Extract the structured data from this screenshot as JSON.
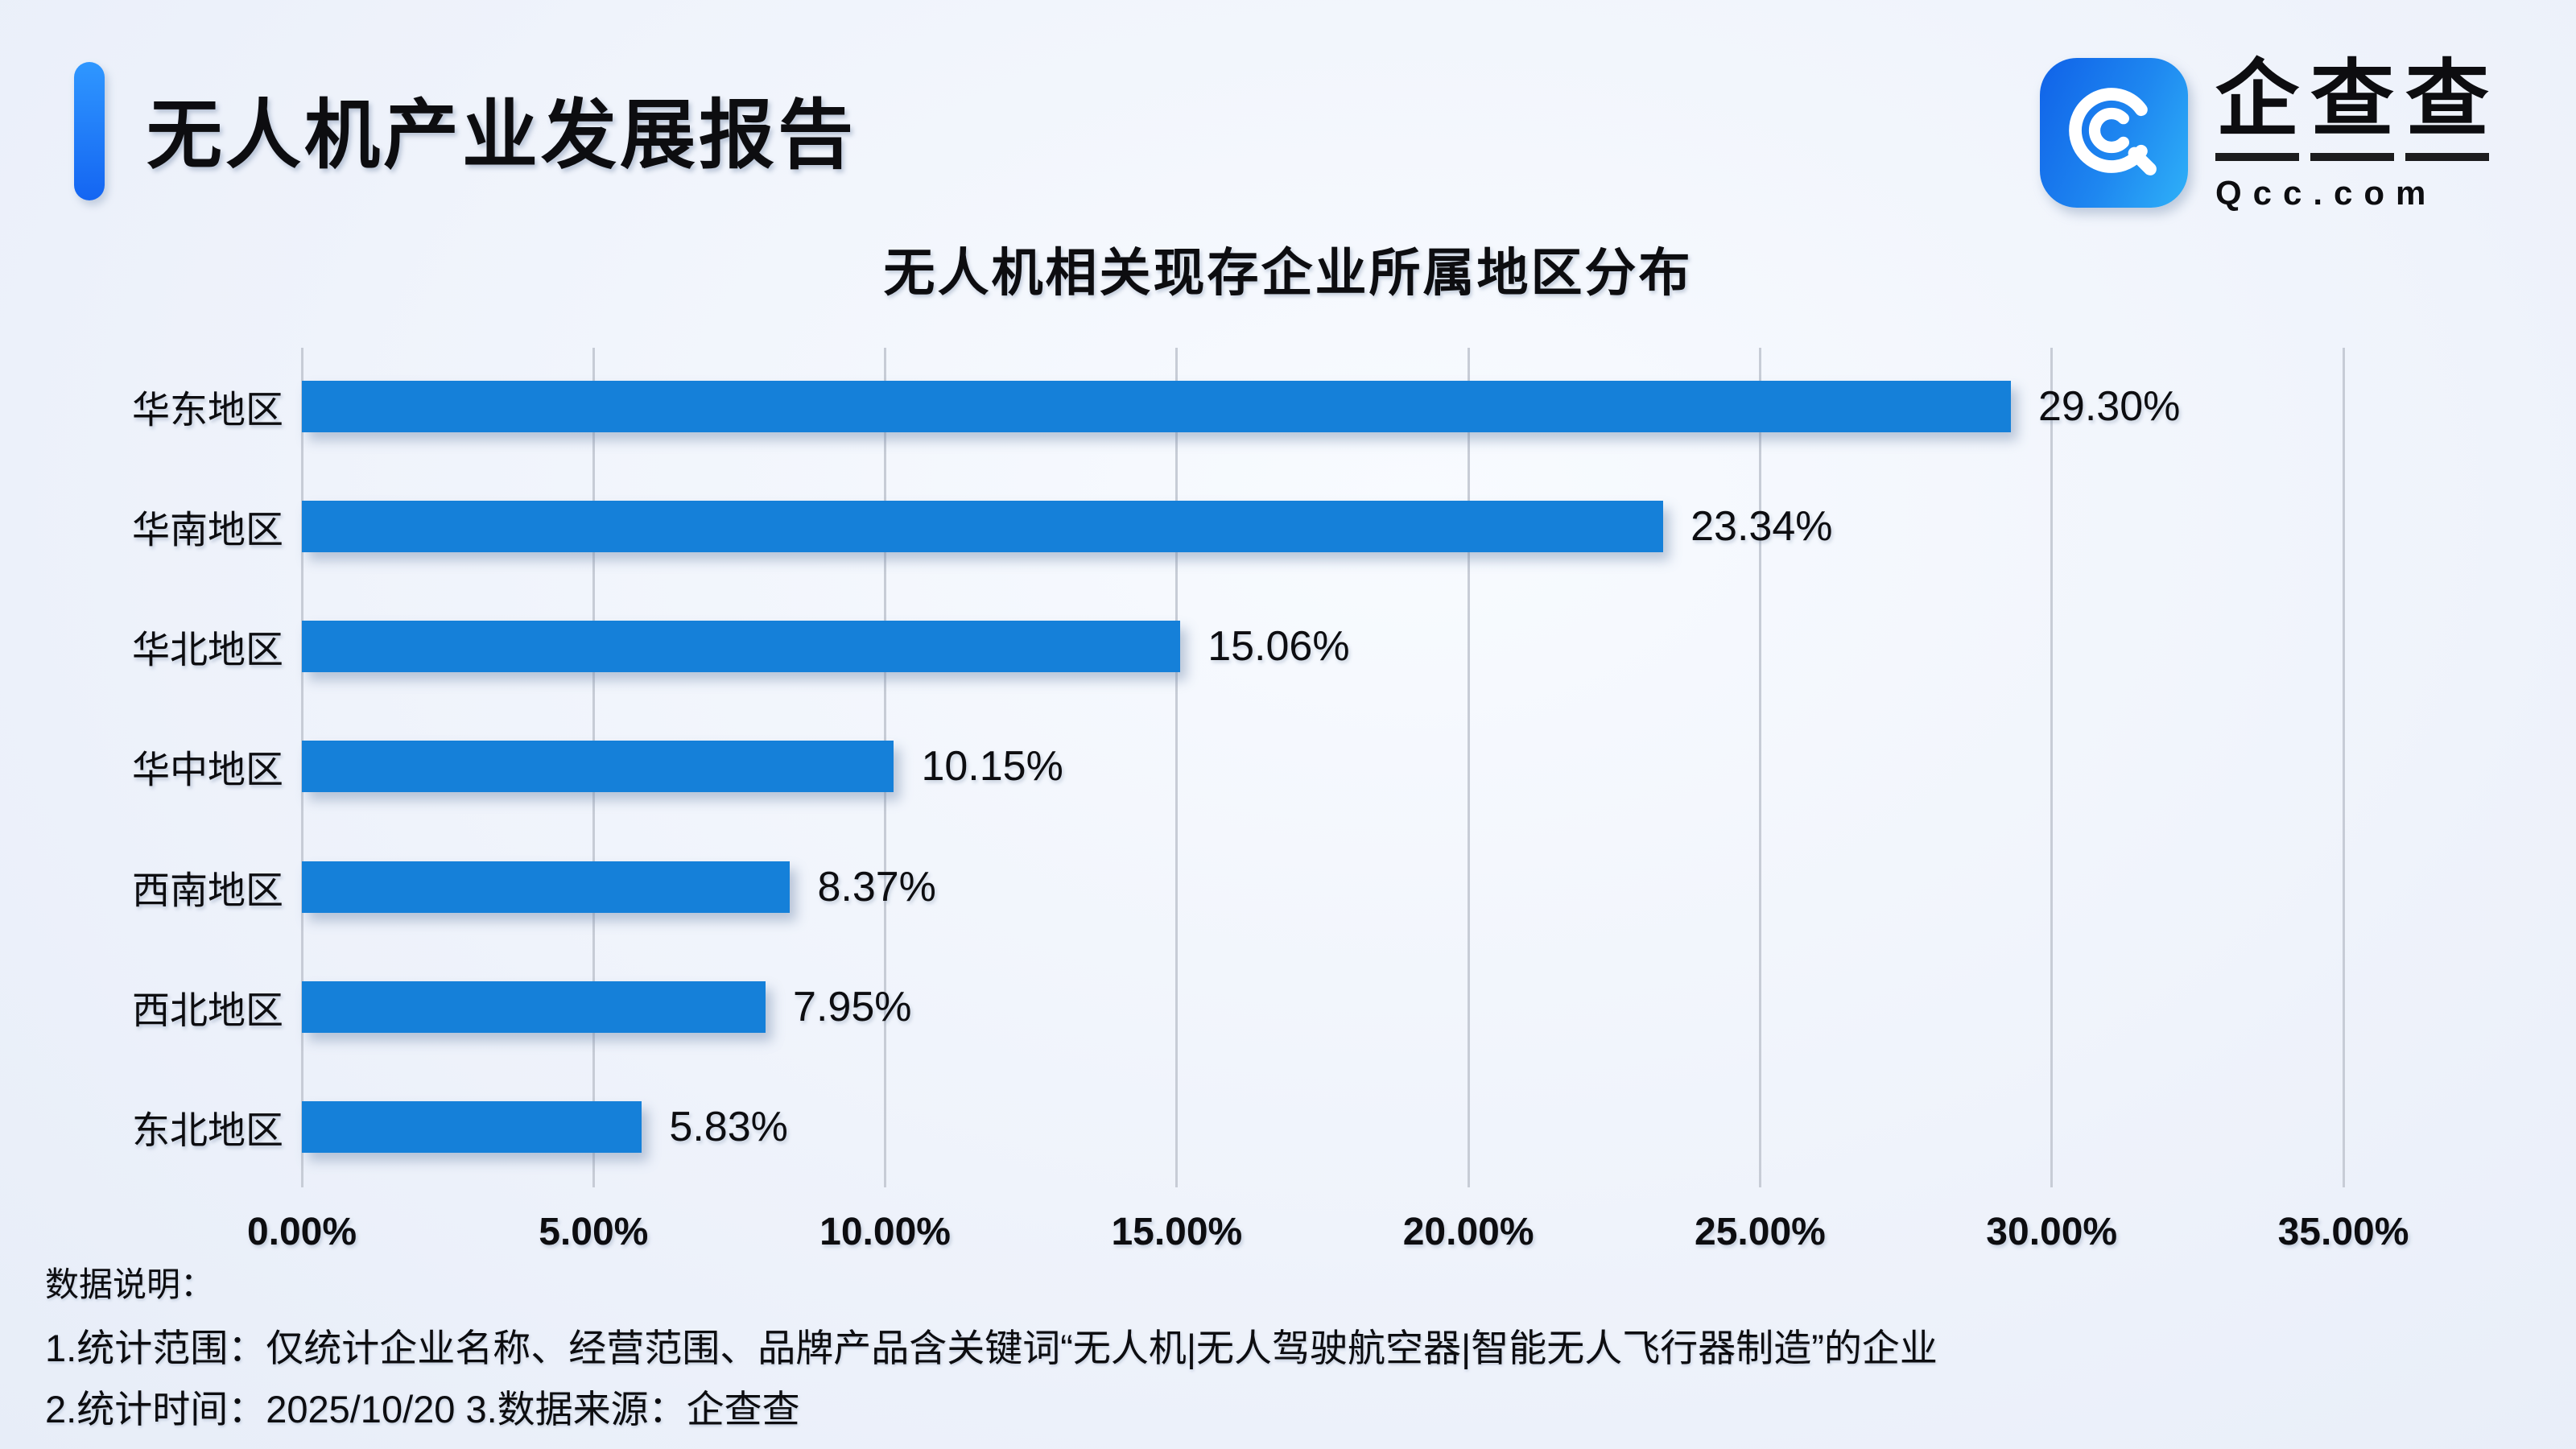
{
  "header": {
    "report_title": "无人机产业发展报告",
    "logo": {
      "brand_chars": [
        "企",
        "查",
        "查"
      ],
      "domain": "Qcc.com",
      "icon_name": "qcc-magnifier-icon"
    }
  },
  "chart_data": {
    "type": "bar",
    "orientation": "horizontal",
    "title": "无人机相关现存企业所属地区分布",
    "categories": [
      "华东地区",
      "华南地区",
      "华北地区",
      "华中地区",
      "西南地区",
      "西北地区",
      "东北地区"
    ],
    "values": [
      29.3,
      23.34,
      15.06,
      10.15,
      8.37,
      7.95,
      5.83
    ],
    "value_labels": [
      "29.30%",
      "23.34%",
      "15.06%",
      "10.15%",
      "8.37%",
      "7.95%",
      "5.83%"
    ],
    "x_ticks": [
      "0.00%",
      "5.00%",
      "10.00%",
      "15.00%",
      "20.00%",
      "25.00%",
      "30.00%",
      "35.00%"
    ],
    "xlim": [
      0,
      35
    ],
    "grid": true,
    "legend_position": "none",
    "bar_color": "#1580d9",
    "gridline_color": "#c7ccd6"
  },
  "footnotes": {
    "heading": "数据说明：",
    "line1": "1.统计范围：仅统计企业名称、经营范围、品牌产品含关键词“无人机|无人驾驶航空器|智能无人飞行器制造”的企业",
    "line2": "2.统计时间：2025/10/20 3.数据来源：企查查"
  },
  "colors": {
    "accent_blue": "#1677f5",
    "bar_blue": "#1580d9",
    "text": "#0d0d10",
    "background": "#eff3fb"
  }
}
